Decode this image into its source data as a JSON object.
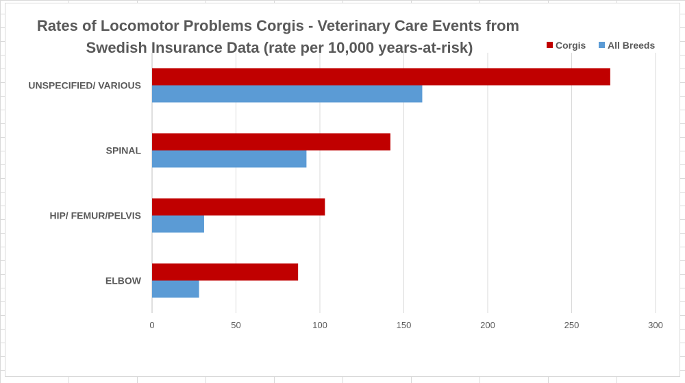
{
  "chart_data": {
    "type": "bar",
    "orientation": "horizontal",
    "title_lines": [
      "Rates of Locomotor Problems Corgis - Veterinary Care Events from",
      "Swedish Insurance Data (rate per 10,000 years-at-risk)"
    ],
    "categories": [
      "UNSPECIFIED/ VARIOUS",
      "SPINAL",
      "HIP/ FEMUR/PELVIS",
      "ELBOW"
    ],
    "series": [
      {
        "name": "Corgis",
        "color": "#c00000",
        "values": [
          273,
          142,
          103,
          87
        ]
      },
      {
        "name": "All Breeds",
        "color": "#5b9bd5",
        "values": [
          161,
          92,
          31,
          28
        ]
      }
    ],
    "xlim": [
      0,
      300
    ],
    "xticks": [
      "0",
      "50",
      "100",
      "150",
      "200",
      "250",
      "300"
    ],
    "grid": true,
    "legend": "top-right"
  }
}
